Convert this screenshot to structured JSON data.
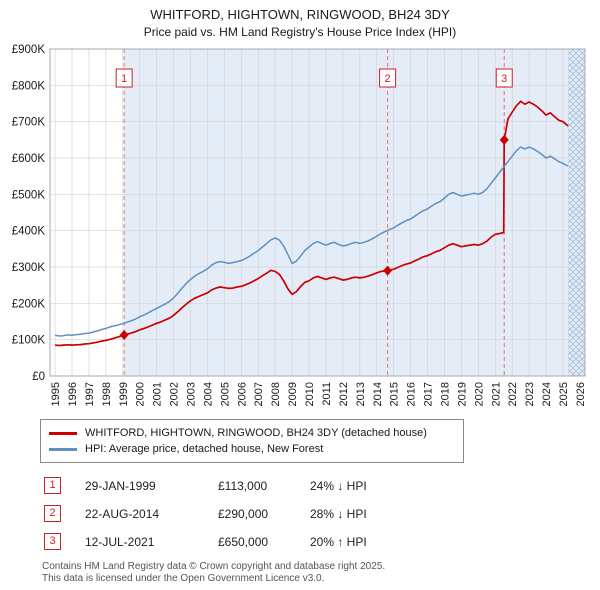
{
  "chart_data": {
    "type": "line",
    "title": "WHITFORD, HIGHTOWN, RINGWOOD, BH24 3DY",
    "subtitle": "Price paid vs. HM Land Registry's House Price Index (HPI)",
    "xlim": [
      1994.7,
      2026.3
    ],
    "ylim": [
      0,
      900000
    ],
    "ytick_step": 100000,
    "x_ticks": [
      1995,
      1996,
      1997,
      1998,
      1999,
      2000,
      2001,
      2002,
      2003,
      2004,
      2005,
      2006,
      2007,
      2008,
      2009,
      2010,
      2011,
      2012,
      2013,
      2014,
      2015,
      2016,
      2017,
      2018,
      2019,
      2020,
      2021,
      2022,
      2023,
      2024,
      2025,
      2026
    ],
    "shade_start": 1999.08,
    "hatch_start": 2025.3,
    "grid": true,
    "legend_position": "below",
    "colors": {
      "shade": "#e3ecf7",
      "grid": "#d4d4d4",
      "sale_line": "#e87272",
      "border": "#aaaaaa",
      "accent_red": "#cc2222"
    },
    "series": [
      {
        "name": "WHITFORD, HIGHTOWN, RINGWOOD, BH24 3DY (detached house)",
        "color": "#cc0000",
        "width": 1.7,
        "points": [
          [
            1995.0,
            85000
          ],
          [
            1995.25,
            84000
          ],
          [
            1995.5,
            85000
          ],
          [
            1995.75,
            86000
          ],
          [
            1996.0,
            85000
          ],
          [
            1996.25,
            86000
          ],
          [
            1996.5,
            86500
          ],
          [
            1996.75,
            88000
          ],
          [
            1997.0,
            89000
          ],
          [
            1997.25,
            91000
          ],
          [
            1997.5,
            93000
          ],
          [
            1997.75,
            96000
          ],
          [
            1998.0,
            98000
          ],
          [
            1998.25,
            101000
          ],
          [
            1998.5,
            104000
          ],
          [
            1998.75,
            108000
          ],
          [
            1999.08,
            113000
          ],
          [
            1999.25,
            115000
          ],
          [
            1999.5,
            118000
          ],
          [
            1999.75,
            122000
          ],
          [
            2000.0,
            127000
          ],
          [
            2000.25,
            131000
          ],
          [
            2000.5,
            135000
          ],
          [
            2000.75,
            140000
          ],
          [
            2001.0,
            145000
          ],
          [
            2001.25,
            149000
          ],
          [
            2001.5,
            154000
          ],
          [
            2001.75,
            159000
          ],
          [
            2002.0,
            167000
          ],
          [
            2002.25,
            177000
          ],
          [
            2002.5,
            188000
          ],
          [
            2002.75,
            198000
          ],
          [
            2003.0,
            207000
          ],
          [
            2003.25,
            214000
          ],
          [
            2003.5,
            219000
          ],
          [
            2003.75,
            224000
          ],
          [
            2004.0,
            229000
          ],
          [
            2004.25,
            237000
          ],
          [
            2004.5,
            242000
          ],
          [
            2004.75,
            245000
          ],
          [
            2005.0,
            243000
          ],
          [
            2005.25,
            241000
          ],
          [
            2005.5,
            242000
          ],
          [
            2005.75,
            245000
          ],
          [
            2006.0,
            247000
          ],
          [
            2006.25,
            251000
          ],
          [
            2006.5,
            256000
          ],
          [
            2006.75,
            262000
          ],
          [
            2007.0,
            268000
          ],
          [
            2007.25,
            276000
          ],
          [
            2007.5,
            283000
          ],
          [
            2007.75,
            291000
          ],
          [
            2008.0,
            288000
          ],
          [
            2008.25,
            280000
          ],
          [
            2008.5,
            262000
          ],
          [
            2008.75,
            240000
          ],
          [
            2009.0,
            225000
          ],
          [
            2009.25,
            232000
          ],
          [
            2009.5,
            246000
          ],
          [
            2009.75,
            258000
          ],
          [
            2010.0,
            262000
          ],
          [
            2010.25,
            270000
          ],
          [
            2010.5,
            274000
          ],
          [
            2010.75,
            270000
          ],
          [
            2011.0,
            266000
          ],
          [
            2011.25,
            270000
          ],
          [
            2011.5,
            272000
          ],
          [
            2011.75,
            268000
          ],
          [
            2012.0,
            264000
          ],
          [
            2012.25,
            266000
          ],
          [
            2012.5,
            270000
          ],
          [
            2012.75,
            272000
          ],
          [
            2013.0,
            270000
          ],
          [
            2013.25,
            272000
          ],
          [
            2013.5,
            275000
          ],
          [
            2013.75,
            279000
          ],
          [
            2014.0,
            284000
          ],
          [
            2014.25,
            288000
          ],
          [
            2014.64,
            290000
          ],
          [
            2014.75,
            291000
          ],
          [
            2015.0,
            294000
          ],
          [
            2015.25,
            299000
          ],
          [
            2015.5,
            304000
          ],
          [
            2015.75,
            308000
          ],
          [
            2016.0,
            311000
          ],
          [
            2016.25,
            317000
          ],
          [
            2016.5,
            322000
          ],
          [
            2016.75,
            328000
          ],
          [
            2017.0,
            331000
          ],
          [
            2017.25,
            337000
          ],
          [
            2017.5,
            342000
          ],
          [
            2017.75,
            346000
          ],
          [
            2018.0,
            353000
          ],
          [
            2018.25,
            360000
          ],
          [
            2018.5,
            364000
          ],
          [
            2018.75,
            360000
          ],
          [
            2019.0,
            356000
          ],
          [
            2019.25,
            358000
          ],
          [
            2019.5,
            360000
          ],
          [
            2019.75,
            362000
          ],
          [
            2020.0,
            360000
          ],
          [
            2020.25,
            364000
          ],
          [
            2020.5,
            371000
          ],
          [
            2020.75,
            382000
          ],
          [
            2021.0,
            390000
          ],
          [
            2021.25,
            392000
          ],
          [
            2021.5,
            395000
          ],
          [
            2021.53,
            650000
          ],
          [
            2021.75,
            708000
          ],
          [
            2022.0,
            726000
          ],
          [
            2022.25,
            744000
          ],
          [
            2022.5,
            756000
          ],
          [
            2022.75,
            748000
          ],
          [
            2023.0,
            754000
          ],
          [
            2023.25,
            748000
          ],
          [
            2023.5,
            740000
          ],
          [
            2023.75,
            730000
          ],
          [
            2024.0,
            718000
          ],
          [
            2024.25,
            724000
          ],
          [
            2024.5,
            714000
          ],
          [
            2024.75,
            704000
          ],
          [
            2025.0,
            700000
          ],
          [
            2025.3,
            688000
          ]
        ]
      },
      {
        "name": "HPI: Average price, detached house, New Forest",
        "color": "#6090c0",
        "width": 1.5,
        "points": [
          [
            1995.0,
            112000
          ],
          [
            1995.25,
            110000
          ],
          [
            1995.5,
            111000
          ],
          [
            1995.75,
            113000
          ],
          [
            1996.0,
            112000
          ],
          [
            1996.25,
            114000
          ],
          [
            1996.5,
            115000
          ],
          [
            1996.75,
            117000
          ],
          [
            1997.0,
            118000
          ],
          [
            1997.25,
            121000
          ],
          [
            1997.5,
            124000
          ],
          [
            1997.75,
            128000
          ],
          [
            1998.0,
            131000
          ],
          [
            1998.25,
            135000
          ],
          [
            1998.5,
            138000
          ],
          [
            1998.75,
            141000
          ],
          [
            1999.0,
            144000
          ],
          [
            1999.25,
            148000
          ],
          [
            1999.5,
            152000
          ],
          [
            1999.75,
            157000
          ],
          [
            2000.0,
            163000
          ],
          [
            2000.25,
            168000
          ],
          [
            2000.5,
            174000
          ],
          [
            2000.75,
            180000
          ],
          [
            2001.0,
            186000
          ],
          [
            2001.25,
            192000
          ],
          [
            2001.5,
            198000
          ],
          [
            2001.75,
            205000
          ],
          [
            2002.0,
            215000
          ],
          [
            2002.25,
            228000
          ],
          [
            2002.5,
            242000
          ],
          [
            2002.75,
            255000
          ],
          [
            2003.0,
            266000
          ],
          [
            2003.25,
            275000
          ],
          [
            2003.5,
            282000
          ],
          [
            2003.75,
            288000
          ],
          [
            2004.0,
            295000
          ],
          [
            2004.25,
            305000
          ],
          [
            2004.5,
            312000
          ],
          [
            2004.75,
            315000
          ],
          [
            2005.0,
            313000
          ],
          [
            2005.25,
            310000
          ],
          [
            2005.5,
            312000
          ],
          [
            2005.75,
            315000
          ],
          [
            2006.0,
            318000
          ],
          [
            2006.25,
            323000
          ],
          [
            2006.5,
            330000
          ],
          [
            2006.75,
            338000
          ],
          [
            2007.0,
            345000
          ],
          [
            2007.25,
            355000
          ],
          [
            2007.5,
            365000
          ],
          [
            2007.75,
            375000
          ],
          [
            2008.0,
            380000
          ],
          [
            2008.25,
            374000
          ],
          [
            2008.5,
            358000
          ],
          [
            2008.75,
            334000
          ],
          [
            2009.0,
            310000
          ],
          [
            2009.25,
            316000
          ],
          [
            2009.5,
            330000
          ],
          [
            2009.75,
            345000
          ],
          [
            2010.0,
            355000
          ],
          [
            2010.25,
            365000
          ],
          [
            2010.5,
            370000
          ],
          [
            2010.75,
            365000
          ],
          [
            2011.0,
            360000
          ],
          [
            2011.25,
            365000
          ],
          [
            2011.5,
            368000
          ],
          [
            2011.75,
            362000
          ],
          [
            2012.0,
            358000
          ],
          [
            2012.25,
            360000
          ],
          [
            2012.5,
            365000
          ],
          [
            2012.75,
            368000
          ],
          [
            2013.0,
            365000
          ],
          [
            2013.25,
            368000
          ],
          [
            2013.5,
            372000
          ],
          [
            2013.75,
            378000
          ],
          [
            2014.0,
            385000
          ],
          [
            2014.25,
            392000
          ],
          [
            2014.5,
            398000
          ],
          [
            2014.75,
            403000
          ],
          [
            2015.0,
            408000
          ],
          [
            2015.25,
            415000
          ],
          [
            2015.5,
            422000
          ],
          [
            2015.75,
            428000
          ],
          [
            2016.0,
            432000
          ],
          [
            2016.25,
            440000
          ],
          [
            2016.5,
            448000
          ],
          [
            2016.75,
            455000
          ],
          [
            2017.0,
            460000
          ],
          [
            2017.25,
            468000
          ],
          [
            2017.5,
            475000
          ],
          [
            2017.75,
            480000
          ],
          [
            2018.0,
            490000
          ],
          [
            2018.25,
            500000
          ],
          [
            2018.5,
            505000
          ],
          [
            2018.75,
            500000
          ],
          [
            2019.0,
            495000
          ],
          [
            2019.25,
            498000
          ],
          [
            2019.5,
            500000
          ],
          [
            2019.75,
            503000
          ],
          [
            2020.0,
            500000
          ],
          [
            2020.25,
            505000
          ],
          [
            2020.5,
            515000
          ],
          [
            2020.75,
            530000
          ],
          [
            2021.0,
            545000
          ],
          [
            2021.25,
            560000
          ],
          [
            2021.5,
            575000
          ],
          [
            2021.75,
            590000
          ],
          [
            2022.0,
            605000
          ],
          [
            2022.25,
            620000
          ],
          [
            2022.5,
            630000
          ],
          [
            2022.75,
            625000
          ],
          [
            2023.0,
            630000
          ],
          [
            2023.25,
            625000
          ],
          [
            2023.5,
            618000
          ],
          [
            2023.75,
            610000
          ],
          [
            2024.0,
            600000
          ],
          [
            2024.25,
            605000
          ],
          [
            2024.5,
            598000
          ],
          [
            2024.75,
            590000
          ],
          [
            2025.0,
            585000
          ],
          [
            2025.3,
            578000
          ]
        ]
      }
    ],
    "sales": [
      {
        "label": "1",
        "x": 1999.08,
        "y": 113000,
        "date": "29-JAN-1999",
        "price": "£113,000",
        "hpi": "24% ↓ HPI"
      },
      {
        "label": "2",
        "x": 2014.64,
        "y": 290000,
        "date": "22-AUG-2014",
        "price": "£290,000",
        "hpi": "28% ↓ HPI"
      },
      {
        "label": "3",
        "x": 2021.53,
        "y": 650000,
        "date": "12-JUL-2021",
        "price": "£650,000",
        "hpi": "20% ↑ HPI"
      }
    ]
  },
  "footer": {
    "line1": "Contains HM Land Registry data © Crown copyright and database right 2025.",
    "line2": "This data is licensed under the Open Government Licence v3.0."
  }
}
